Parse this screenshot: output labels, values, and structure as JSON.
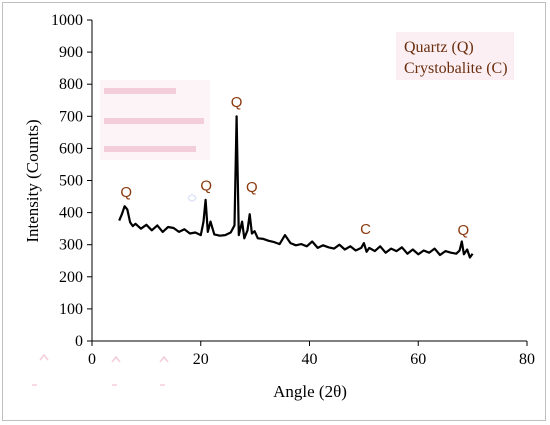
{
  "chart_data": {
    "type": "line",
    "title": "",
    "xlabel": "Angle (2θ)",
    "ylabel": "Intensity (Counts)",
    "xlim": [
      0,
      80
    ],
    "ylim": [
      0,
      1000
    ],
    "x_ticks": [
      "0",
      "20",
      "40",
      "60",
      "80"
    ],
    "y_ticks": [
      "0",
      "100",
      "200",
      "300",
      "400",
      "500",
      "600",
      "700",
      "800",
      "900",
      "1000"
    ],
    "grid": false,
    "legend": [
      "Quartz (Q)",
      "Crystobalite (C)"
    ],
    "legend_position": "top-right",
    "line_color": "#000000",
    "label_color": "#8b3a0e",
    "series": [
      {
        "x": [
          5.0,
          5.5,
          6.0,
          6.5,
          7.0,
          7.5,
          8.0,
          9.0,
          10.0,
          11.0,
          12.0,
          13.0,
          14.0,
          15.0,
          16.0,
          17.0,
          18.0,
          19.0,
          20.0,
          20.5,
          20.9,
          21.3,
          21.8,
          22.5,
          23.5,
          24.5,
          25.5,
          26.2,
          26.6,
          27.0,
          27.6,
          28.0,
          28.6,
          29.0,
          29.4,
          29.9,
          30.5,
          31.5,
          32.5,
          33.5,
          34.5,
          35.5,
          36.5,
          37.5,
          38.5,
          39.5,
          40.5,
          41.5,
          42.5,
          43.5,
          44.5,
          45.5,
          46.5,
          47.5,
          48.5,
          49.5,
          50.0,
          50.5,
          51.0,
          52.0,
          53.0,
          54.0,
          55.0,
          56.0,
          57.0,
          58.0,
          59.0,
          60.0,
          61.0,
          62.0,
          63.0,
          64.0,
          65.0,
          66.0,
          67.0,
          67.6,
          68.0,
          68.4,
          69.0,
          69.5,
          70.0
        ],
        "y": [
          375,
          395,
          420,
          410,
          370,
          358,
          365,
          350,
          362,
          345,
          360,
          340,
          355,
          352,
          340,
          348,
          335,
          338,
          330,
          372,
          440,
          340,
          372,
          332,
          328,
          330,
          338,
          360,
          700,
          330,
          372,
          320,
          345,
          395,
          335,
          342,
          320,
          318,
          312,
          308,
          302,
          330,
          305,
          298,
          302,
          295,
          310,
          290,
          298,
          292,
          288,
          300,
          285,
          295,
          282,
          290,
          305,
          278,
          290,
          280,
          295,
          275,
          288,
          280,
          292,
          272,
          285,
          270,
          282,
          275,
          288,
          268,
          280,
          275,
          272,
          282,
          310,
          270,
          285,
          260,
          272
        ]
      }
    ],
    "peak_labels": [
      {
        "label": "Q",
        "x": 6.3,
        "y": 430
      },
      {
        "label": "Q",
        "x": 21.0,
        "y": 450
      },
      {
        "label": "Q",
        "x": 26.6,
        "y": 710
      },
      {
        "label": "Q",
        "x": 29.4,
        "y": 445
      },
      {
        "label": "C",
        "x": 50.3,
        "y": 315
      },
      {
        "label": "Q",
        "x": 68.3,
        "y": 312
      }
    ]
  }
}
